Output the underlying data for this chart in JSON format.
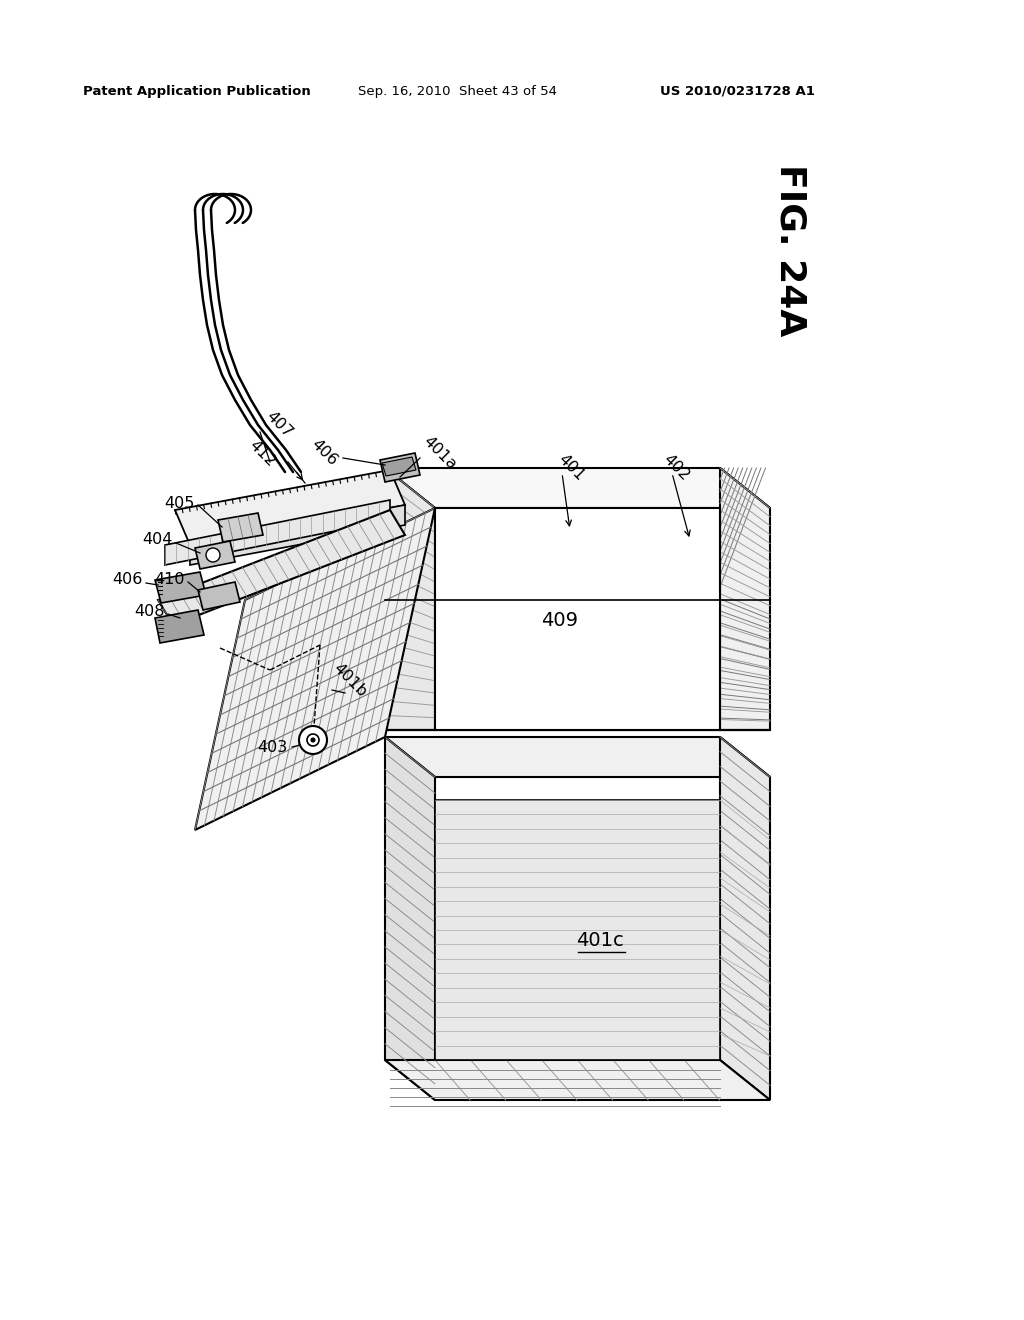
{
  "bg_color": "#ffffff",
  "header_left": "Patent Application Publication",
  "header_mid": "Sep. 16, 2010  Sheet 43 of 54",
  "header_right": "US 2010/0231728 A1",
  "fig_label": "FIG. 24A",
  "line_color": "#000000",
  "hatch_color": "#555555",
  "face_white": "#ffffff",
  "face_light": "#f0f0f0",
  "face_gray": "#e0e0e0",
  "face_dark": "#c8c8c8"
}
